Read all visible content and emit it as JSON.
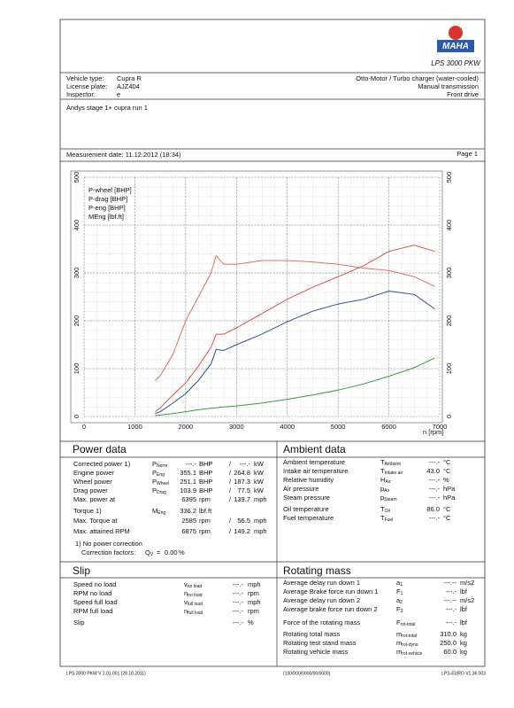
{
  "logo": {
    "brand": "MAHA",
    "product": "LPS 3000 PKW"
  },
  "vehicle": [
    {
      "label": "Vehicle type:",
      "value": "Cupra R"
    },
    {
      "label": "License plate:",
      "value": "AJZ404"
    },
    {
      "label": "Inspector:",
      "value": "e"
    }
  ],
  "engine_info": [
    "Otto-Motor / Turbo charger (water-cooled)",
    "Manual transmission",
    "Front drive"
  ],
  "comment": "Andys stage 1+ cupra run 1",
  "measurement_date": "Measurement date: 11.12.2012 (18:34)",
  "page": "Page 1",
  "chart": {
    "type": "line",
    "x_label": "n [rpm]",
    "x": [
      1400,
      1500,
      1750,
      2000,
      2250,
      2500,
      2600,
      2750,
      3000,
      3500,
      4000,
      4500,
      5000,
      5500,
      6000,
      6500,
      6900
    ],
    "xlim": [
      0,
      7000
    ],
    "xticks": [
      0,
      1000,
      2000,
      3000,
      4000,
      5000,
      6000,
      7000
    ],
    "ylim": [
      0,
      500
    ],
    "yticks": [
      0,
      100,
      200,
      300,
      400,
      500
    ],
    "y2lim": [
      0,
      500
    ],
    "y2ticks": [
      0,
      100,
      200,
      300,
      400,
      500
    ],
    "y2_color": "#d9534f",
    "grid": true,
    "legend": "top-left",
    "series": [
      {
        "name": "P-wheel [BHP]",
        "color": "#2f4f8f",
        "values": [
          6,
          10,
          28,
          48,
          75,
          110,
          140,
          138,
          150,
          172,
          198,
          220,
          235,
          245,
          262,
          255,
          225
        ]
      },
      {
        "name": "P-drag [BHP]",
        "color": "#3c9a3c",
        "values": [
          2,
          3,
          6,
          10,
          14,
          17,
          18,
          20,
          22,
          28,
          36,
          45,
          55,
          68,
          84,
          102,
          122
        ]
      },
      {
        "name": "P-eng [BHP]",
        "color": "#d9534f",
        "values": [
          10,
          18,
          45,
          70,
          105,
          145,
          172,
          172,
          185,
          215,
          245,
          270,
          292,
          315,
          345,
          358,
          345
        ]
      },
      {
        "name": "MEng [lbf.ft]",
        "color": "#e0705f",
        "axis": "y2",
        "values": [
          75,
          85,
          130,
          200,
          250,
          300,
          336,
          318,
          318,
          326,
          326,
          323,
          318,
          310,
          305,
          292,
          272
        ]
      }
    ]
  },
  "power_data": {
    "title": "Power data",
    "rows": [
      {
        "label": "Corrected power 1)",
        "symbol": {
          "main": "P",
          "sub": "Norm"
        },
        "value": "---.-",
        "unit": "BHP",
        "sep": "/",
        "value2": "---.-",
        "unit2": "kW",
        "color": "#c0392b"
      },
      {
        "label": "Engine power",
        "symbol": {
          "main": "P",
          "sub": "Eng"
        },
        "value": "355.1",
        "unit": "BHP",
        "sep": "/",
        "value2": "264.8",
        "unit2": "kW",
        "color": "#c0392b"
      },
      {
        "label": "Wheel power",
        "symbol": {
          "main": "P",
          "sub": "Wheel"
        },
        "value": "251.1",
        "unit": "BHP",
        "sep": "/",
        "value2": "187.3",
        "unit2": "kW",
        "color": "#2f4f8f"
      },
      {
        "label": "Drag power",
        "symbol": {
          "main": "P",
          "sub": "Drag"
        },
        "value": "103.9",
        "unit": "BHP",
        "sep": "/",
        "value2": "77.5",
        "unit2": "kW",
        "color": "#3c9a3c"
      },
      {
        "label": "Max. power at",
        "value": "6395",
        "unit": "rpm",
        "sep": "/",
        "value2": "139.7",
        "unit2": "mph",
        "color": "#111"
      },
      {
        "label": "Torque 1)",
        "symbol": {
          "main": "M",
          "sub": "Eng"
        },
        "value": "336.2",
        "unit": "lbf.ft",
        "color": "#c0392b"
      },
      {
        "label": "Max. Torque at",
        "value": "2585",
        "unit": "rpm",
        "sep": "/",
        "value2": "56.5",
        "unit2": "mph",
        "color": "#111"
      },
      {
        "label": "Max. attained RPM",
        "value": "6875",
        "unit": "rpm",
        "sep": "/",
        "value2": "149.2",
        "unit2": "mph",
        "color": "#111"
      }
    ],
    "note": "1) No power correction",
    "correction": {
      "label": "Correction factors:",
      "symbol": {
        "main": "Q",
        "sub": "V"
      },
      "equals": "=",
      "value": "0.00",
      "unit": "%"
    }
  },
  "ambient_data": {
    "title": "Ambient data",
    "rows": [
      {
        "label": "Ambient temperature",
        "symbol": {
          "main": "T",
          "sub": "Ambient"
        },
        "value": "---.-",
        "unit": "°C"
      },
      {
        "label": "Intake air temperature",
        "symbol": {
          "main": "T",
          "sub": "Intake air"
        },
        "value": "43.0",
        "unit": "°C"
      },
      {
        "label": "Relative humidity",
        "symbol": {
          "main": "H",
          "sub": "Air"
        },
        "value": "---.-",
        "unit": "%"
      },
      {
        "label": "Air pressure",
        "symbol": {
          "main": "p",
          "sub": "Air"
        },
        "value": "---.-",
        "unit": "hPa"
      },
      {
        "label": "Steam pressure",
        "symbol": {
          "main": "p",
          "sub": "Steam"
        },
        "value": "---.-",
        "unit": "hPa"
      },
      {
        "label": "Oil temperature",
        "symbol": {
          "main": "T",
          "sub": "Oil"
        },
        "value": "86.0",
        "unit": "°C"
      },
      {
        "label": "Fuel temperature",
        "symbol": {
          "main": "T",
          "sub": "Fuel"
        },
        "value": "---.-",
        "unit": "°C"
      }
    ]
  },
  "slip": {
    "title": "Slip",
    "rows": [
      {
        "label": "Speed no load",
        "symbol": {
          "main": "v",
          "sub": "no load"
        },
        "value": "---.-",
        "unit": "mph"
      },
      {
        "label": "RPM no load",
        "symbol": {
          "main": "n",
          "sub": "no load"
        },
        "value": "---.-",
        "unit": "rpm"
      },
      {
        "label": "Speed full load",
        "symbol": {
          "main": "v",
          "sub": "full load"
        },
        "value": "---.-",
        "unit": "mph"
      },
      {
        "label": "RPM full load",
        "symbol": {
          "main": "n",
          "sub": "full load"
        },
        "value": "---.-",
        "unit": "rpm"
      },
      {
        "label": "Slip",
        "value": "---.-",
        "unit": "%"
      }
    ]
  },
  "rotating_mass": {
    "title": "Rotating mass",
    "rows": [
      {
        "label": "Average delay run down 1",
        "symbol": {
          "main": "a",
          "sub": "1"
        },
        "value": "---.--",
        "unit": "m/s2"
      },
      {
        "label": "Average Brake force run down 1",
        "symbol": {
          "main": "F",
          "sub": "1"
        },
        "value": "---.-",
        "unit": "lbf"
      },
      {
        "label": "Average delay run down 2",
        "symbol": {
          "main": "a",
          "sub": "2"
        },
        "value": "---.--",
        "unit": "m/s2"
      },
      {
        "label": "Average brake force run down 2",
        "symbol": {
          "main": "F",
          "sub": "2"
        },
        "value": "---.-",
        "unit": "lbf"
      },
      {
        "label": "Force of the rotating mass",
        "symbol": {
          "main": "F",
          "sub": "rot-total"
        },
        "value": "---.-",
        "unit": "lbf"
      },
      {
        "label": "Rotating total mass",
        "symbol": {
          "main": "m",
          "sub": "rot-total"
        },
        "value": "310.0",
        "unit": "kg"
      },
      {
        "label": "Rotating test stand mass",
        "symbol": {
          "main": "m",
          "sub": "rot-dyno"
        },
        "value": "250.0",
        "unit": "kg"
      },
      {
        "label": "Rotating vehicle mass",
        "symbol": {
          "main": "m",
          "sub": "rot-vehicle"
        },
        "value": "60.0",
        "unit": "kg"
      }
    ]
  },
  "footer": [
    "LPS 3000 PKW V 2.01.001 (28.10.2011)",
    "(100/000/0000/00/0000)",
    "LPS-EURO V1.36.003"
  ]
}
